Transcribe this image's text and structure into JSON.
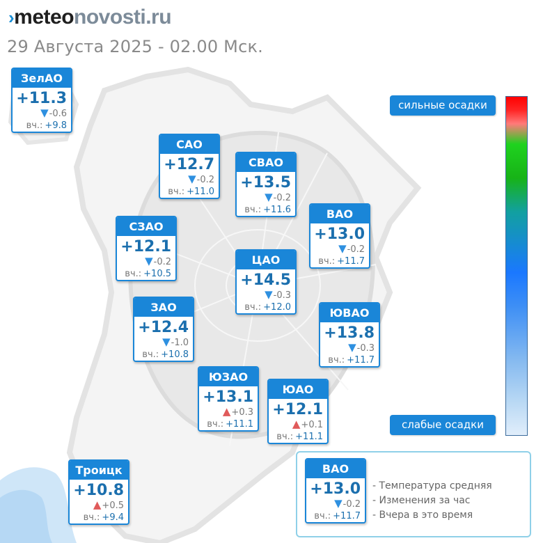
{
  "header": {
    "logo_mark": "›",
    "logo_meteo": "meteo",
    "logo_novosti": "novosti",
    "logo_domain": ".ru",
    "date": "29 Августа 2025 - 02.00 Мск."
  },
  "colors": {
    "accent": "#1a86d8",
    "temp_text": "#1b6fae",
    "down": "#2e90e0",
    "up": "#e05a5a"
  },
  "yesterday_label": "вч.:",
  "districts": [
    {
      "name": "ЗелАО",
      "temp": "+11.3",
      "dir": "down",
      "change": "-0.6",
      "yesterday": "+9.8"
    },
    {
      "name": "САО",
      "temp": "+12.7",
      "dir": "down",
      "change": "-0.2",
      "yesterday": "+11.0"
    },
    {
      "name": "СВАО",
      "temp": "+13.5",
      "dir": "down",
      "change": "-0.2",
      "yesterday": "+11.6"
    },
    {
      "name": "ВАО",
      "temp": "+13.0",
      "dir": "down",
      "change": "-0.2",
      "yesterday": "+11.7"
    },
    {
      "name": "СЗАО",
      "temp": "+12.1",
      "dir": "down",
      "change": "-0.2",
      "yesterday": "+10.5"
    },
    {
      "name": "ЦАО",
      "temp": "+14.5",
      "dir": "down",
      "change": "-0.3",
      "yesterday": "+12.0"
    },
    {
      "name": "ЗАО",
      "temp": "+12.4",
      "dir": "down",
      "change": "-1.0",
      "yesterday": "+10.8"
    },
    {
      "name": "ЮВАО",
      "temp": "+13.8",
      "dir": "down",
      "change": "-0.3",
      "yesterday": "+11.7"
    },
    {
      "name": "ЮЗАО",
      "temp": "+13.1",
      "dir": "up",
      "change": "+0.3",
      "yesterday": "+11.1"
    },
    {
      "name": "ЮАО",
      "temp": "+12.1",
      "dir": "up",
      "change": "+0.1",
      "yesterday": "+11.1"
    },
    {
      "name": "Троицк",
      "temp": "+10.8",
      "dir": "up",
      "change": "+0.5",
      "yesterday": "+9.4"
    }
  ],
  "precip_scale": {
    "top_label": "сильные осадки",
    "bottom_label": "слабые осадки"
  },
  "legend": {
    "example": {
      "name": "ВАО",
      "temp": "+13.0",
      "dir": "down",
      "change": "-0.2",
      "yesterday": "+11.7"
    },
    "items": [
      "- Температура средняя",
      "- Изменения за час",
      "- Вчера в это время"
    ]
  }
}
